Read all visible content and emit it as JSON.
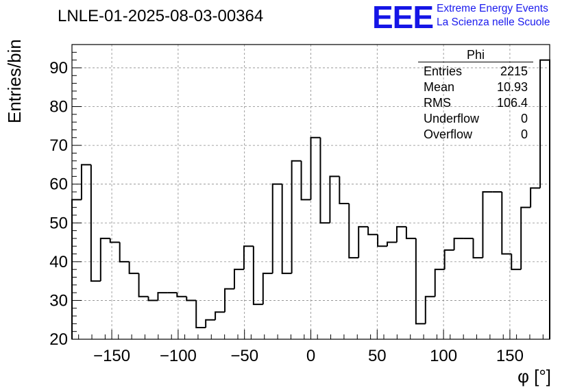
{
  "header": {
    "title": "LNLE-01-2025-08-03-00364",
    "logo_text": "EEE",
    "logo_line1": "Extreme Energy Events",
    "logo_line2": "La Scienza nelle Scuole"
  },
  "stats": {
    "title": "Phi",
    "rows": [
      {
        "label": "Entries",
        "value": "2215"
      },
      {
        "label": "Mean",
        "value": "10.93"
      },
      {
        "label": "RMS",
        "value": "106.4"
      },
      {
        "label": "Underflow",
        "value": "0"
      },
      {
        "label": "Overflow",
        "value": "0"
      }
    ]
  },
  "colors": {
    "line": "#000000",
    "grid": "#888888",
    "logo": "#1515e6"
  },
  "chart_data": {
    "type": "bar",
    "style": "step-histogram",
    "title": "LNLE-01-2025-08-03-00364",
    "xlabel": "φ [°]",
    "ylabel": "Entries/bin",
    "xlim": [
      -180,
      180
    ],
    "ylim": [
      20,
      96
    ],
    "grid": true,
    "xticks": [
      -150,
      -100,
      -50,
      0,
      50,
      100,
      150
    ],
    "xtick_labels": [
      "−150",
      "−100",
      "−50",
      "0",
      "50",
      "100",
      "150"
    ],
    "yticks": [
      20,
      30,
      40,
      50,
      60,
      70,
      80,
      90
    ],
    "bin_edges_start": -180,
    "bin_width": 7.2,
    "values": [
      56,
      65,
      35,
      46,
      45,
      40,
      37,
      31,
      30,
      32,
      32,
      31,
      30,
      23,
      25,
      27,
      33,
      38,
      44,
      29,
      37,
      60,
      37,
      66,
      56,
      72,
      50,
      62,
      55,
      41,
      49,
      47,
      44,
      45,
      49,
      46,
      24,
      31,
      38,
      43,
      46,
      46,
      41,
      58,
      58,
      42,
      38,
      54,
      59,
      92
    ]
  }
}
